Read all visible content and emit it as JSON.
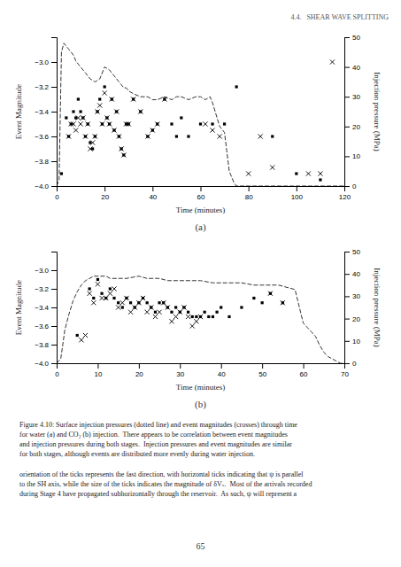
{
  "header": "4.4.   SHEAR WAVE SPLITTING",
  "chart_data": [
    {
      "type": "scatter",
      "title": "(a)",
      "xlabel": "Time (minutes)",
      "ylabel": "Event Magnitude",
      "y2label": "Injection pressure (MPa)",
      "xlim": [
        0,
        120
      ],
      "ylim": [
        -4,
        -2.8
      ],
      "y2lim": [
        0,
        50
      ],
      "xticks": [
        0,
        20,
        40,
        60,
        80,
        100,
        120
      ],
      "yticks": [
        {
          "value": -4,
          "label": "−4.0"
        },
        {
          "value": -3.8,
          "label": "−3.8"
        },
        {
          "value": -3.6,
          "label": "−3.6"
        },
        {
          "value": -3.4,
          "label": "−3.4"
        },
        {
          "value": -3.2,
          "label": "−3.2"
        },
        {
          "value": -3,
          "label": "−3.0"
        }
      ],
      "y2ticks": [
        0,
        10,
        20,
        30,
        40,
        50
      ],
      "series": [
        {
          "type": "scatter",
          "marker": "square",
          "color": "#000000",
          "x": [
            2,
            4,
            5,
            6,
            7,
            8,
            9,
            10,
            11,
            12,
            13,
            14,
            15,
            16,
            17,
            18,
            19,
            20,
            21,
            22,
            23,
            24,
            25,
            26,
            27,
            28,
            29,
            30,
            32,
            35,
            38,
            40,
            42,
            45,
            48,
            50,
            52,
            55,
            60,
            65,
            70,
            75,
            90,
            100,
            110
          ],
          "values": [
            -3.9,
            -3.45,
            -3.6,
            -3.5,
            -3.4,
            -3.45,
            -3.3,
            -3.4,
            -3.45,
            -3.6,
            -3.5,
            -3.65,
            -3.7,
            -3.6,
            -3.4,
            -3.3,
            -3.5,
            -3.2,
            -3.45,
            -3.5,
            -3.3,
            -3.55,
            -3.4,
            -3.6,
            -3.7,
            -3.75,
            -3.5,
            -3.5,
            -3.3,
            -3.4,
            -3.6,
            -3.55,
            -3.5,
            -3.3,
            -3.5,
            -3.6,
            -3.45,
            -3.6,
            -3.5,
            -3.5,
            -3.5,
            -3.2,
            -3.6,
            -3.9,
            -3.95
          ]
        },
        {
          "type": "scatter",
          "marker": "x",
          "color": "#000000",
          "x": [
            5,
            6,
            7,
            8,
            9,
            10,
            11,
            12,
            13,
            14,
            15,
            16,
            17,
            18,
            19,
            20,
            21,
            22,
            23,
            24,
            25,
            26,
            27,
            28,
            29,
            30,
            32,
            35,
            38,
            40,
            42,
            45,
            62,
            65,
            68,
            80,
            85,
            90,
            105,
            110,
            115
          ],
          "values": [
            -3.6,
            -3.5,
            -3.5,
            -3.55,
            -3.45,
            -3.5,
            -3.45,
            -3.6,
            -3.5,
            -3.7,
            -3.65,
            -3.6,
            -3.4,
            -3.35,
            -3.5,
            -3.25,
            -3.45,
            -3.5,
            -3.3,
            -3.55,
            -3.4,
            -3.6,
            -3.7,
            -3.75,
            -3.5,
            -3.5,
            -3.3,
            -3.4,
            -3.6,
            -3.55,
            -3.5,
            -3.3,
            -3.5,
            -3.55,
            -3.6,
            -3.9,
            -3.6,
            -3.85,
            -3.9,
            -3.9,
            -3.0
          ]
        },
        {
          "type": "line",
          "axis": "y2",
          "line_style": "dashed",
          "color": "#333333",
          "x": [
            0,
            1,
            2,
            3,
            4,
            5,
            6,
            7,
            8,
            9,
            10,
            12,
            14,
            16,
            18,
            20,
            22,
            24,
            26,
            27,
            28,
            29,
            30,
            32,
            35,
            38,
            40,
            42,
            45,
            48,
            50,
            52,
            55,
            58,
            60,
            62,
            64,
            65,
            68,
            70,
            72,
            73,
            74,
            75,
            80,
            90,
            100,
            110,
            120
          ],
          "values": [
            0,
            2,
            45,
            48,
            47,
            46,
            45,
            44,
            42,
            41,
            40,
            38,
            36,
            35,
            36,
            40,
            39,
            37,
            35,
            34,
            33,
            33,
            32,
            31,
            30,
            30,
            29,
            29,
            30,
            29,
            30,
            30,
            29,
            30,
            30,
            29,
            30,
            28,
            20,
            18,
            5,
            3,
            1,
            0,
            0,
            0,
            0,
            0,
            0
          ]
        }
      ]
    },
    {
      "type": "scatter",
      "title": "(b)",
      "xlabel": "Time (minutes)",
      "ylabel": "Event Magnitude",
      "y2label": "Injection pressure (MPa)",
      "xlim": [
        0,
        70
      ],
      "ylim": [
        -4,
        -2.8
      ],
      "y2lim": [
        0,
        50
      ],
      "xticks": [
        0,
        10,
        20,
        30,
        40,
        50,
        60,
        70
      ],
      "yticks": [
        {
          "value": -4,
          "label": "−4.0"
        },
        {
          "value": -3.8,
          "label": "−3.8"
        },
        {
          "value": -3.6,
          "label": "−3.6"
        },
        {
          "value": -3.4,
          "label": "−3.4"
        },
        {
          "value": -3.2,
          "label": "−3.2"
        },
        {
          "value": -3,
          "label": "−3.0"
        }
      ],
      "y2ticks": [
        0,
        10,
        20,
        30,
        40,
        50
      ],
      "series": [
        {
          "type": "scatter",
          "marker": "square",
          "color": "#000000",
          "x": [
            5,
            8,
            9,
            10,
            11,
            12,
            13,
            14,
            15,
            16,
            17,
            18,
            19,
            20,
            21,
            22,
            23,
            24,
            25,
            26,
            27,
            28,
            29,
            30,
            31,
            32,
            33,
            34,
            35,
            36,
            37,
            38,
            39,
            40,
            42,
            45,
            48,
            50,
            52,
            55
          ],
          "values": [
            -3.7,
            -3.2,
            -3.3,
            -3.1,
            -3.25,
            -3.3,
            -3.2,
            -3.3,
            -3.35,
            -3.4,
            -3.3,
            -3.35,
            -3.4,
            -3.35,
            -3.3,
            -3.35,
            -3.4,
            -3.45,
            -3.35,
            -3.35,
            -3.4,
            -3.45,
            -3.4,
            -3.45,
            -3.4,
            -3.45,
            -3.5,
            -3.5,
            -3.5,
            -3.45,
            -3.5,
            -3.5,
            -3.45,
            -3.4,
            -3.5,
            -3.4,
            -3.3,
            -3.35,
            -3.25,
            -3.35
          ]
        },
        {
          "type": "scatter",
          "marker": "x",
          "color": "#000000",
          "x": [
            6,
            7,
            8,
            9,
            10,
            11,
            12,
            13,
            14,
            15,
            16,
            17,
            18,
            19,
            20,
            21,
            22,
            23,
            24,
            25,
            26,
            27,
            28,
            29,
            30,
            31,
            32,
            33,
            34,
            35,
            52,
            55
          ],
          "values": [
            -3.75,
            -3.7,
            -3.25,
            -3.35,
            -3.15,
            -3.3,
            -3.3,
            -3.25,
            -3.2,
            -3.4,
            -3.35,
            -3.3,
            -3.45,
            -3.4,
            -3.35,
            -3.3,
            -3.45,
            -3.4,
            -3.5,
            -3.45,
            -3.35,
            -3.4,
            -3.55,
            -3.5,
            -3.45,
            -3.4,
            -3.5,
            -3.6,
            -3.55,
            -3.5,
            -3.25,
            -3.35
          ]
        },
        {
          "type": "line",
          "axis": "y2",
          "line_style": "dashed",
          "color": "#333333",
          "x": [
            0,
            1,
            2,
            3,
            4,
            5,
            6,
            7,
            8,
            9,
            10,
            11,
            12,
            13,
            14,
            15,
            17,
            20,
            22,
            25,
            27,
            30,
            33,
            35,
            38,
            40,
            42,
            45,
            48,
            50,
            52,
            54,
            56,
            58,
            60,
            61,
            62,
            63,
            64,
            65,
            66,
            67,
            68,
            69,
            70
          ],
          "values": [
            0,
            2,
            15,
            22,
            28,
            32,
            35,
            37,
            38,
            39,
            39,
            39,
            39,
            38,
            38,
            38,
            38,
            39,
            38,
            38,
            37,
            37,
            37,
            37,
            36,
            36,
            36,
            36,
            35,
            35,
            35,
            35,
            34,
            33,
            18,
            16,
            14,
            12,
            8,
            5,
            3,
            2,
            1,
            0,
            0
          ]
        }
      ]
    }
  ],
  "caption": [
    "Figure 4.10: Surface injection pressures (dotted line) and event magnitudes (crosses) through time",
    "for water (a) and CO₂ (b) injection.  There appears to be correlation between event magnitudes",
    "and injection pressures during both stages.  Injection pressures and event magnitudes are similar",
    "for both stages, although events are distributed more evenly during water injection."
  ],
  "body_text": [
    "orientation of the ticks represents the fast direction, with horizontal ticks indicating that ψ is parallel",
    "to the SH axis, while the size of the ticks indicates the magnitude of δVₛ.  Most of the arrivals recorded",
    "during Stage 4 have propagated subhorizontally through the reservoir.  As such, ψ will represent a"
  ],
  "page_number": "65"
}
